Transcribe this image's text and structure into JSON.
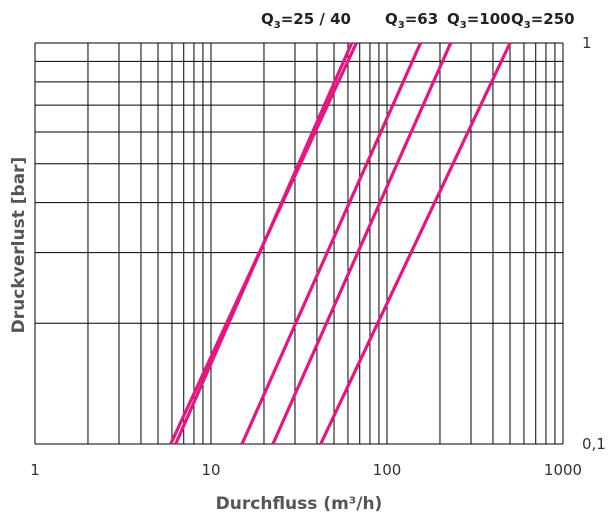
{
  "chart_data": {
    "type": "line",
    "x_scale": "log",
    "y_scale": "log",
    "xlabel": "Durchfluss (m³/h)",
    "ylabel": "Druckverlust [bar]",
    "xlim": [
      1,
      1000
    ],
    "ylim": [
      0.1,
      1
    ],
    "x_ticks": [
      {
        "value": 1,
        "label": "1"
      },
      {
        "value": 10,
        "label": "10"
      },
      {
        "value": 100,
        "label": "100"
      },
      {
        "value": 1000,
        "label": "1000"
      }
    ],
    "y_ticks": [
      {
        "value": 1,
        "label": "1"
      },
      {
        "value": 0.1,
        "label": "0,1"
      }
    ],
    "grid": true,
    "line_color": "#e6157f",
    "series_labels": [
      {
        "main": "Q",
        "sub": "3",
        "rest": "=25 / 40"
      },
      {
        "main": "Q",
        "sub": "3",
        "rest": "=63"
      },
      {
        "main": "Q",
        "sub": "3",
        "rest": "=100"
      },
      {
        "main": "Q",
        "sub": "3",
        "rest": "=250"
      }
    ],
    "series": [
      {
        "points": [
          [
            6.3,
            0.1
          ],
          [
            63,
            1
          ]
        ]
      },
      {
        "points": [
          [
            5.9,
            0.1
          ],
          [
            67,
            1
          ]
        ]
      },
      {
        "points": [
          [
            15,
            0.1
          ],
          [
            155,
            1
          ]
        ]
      },
      {
        "points": [
          [
            22.5,
            0.1
          ],
          [
            230,
            1
          ]
        ]
      },
      {
        "points": [
          [
            42,
            0.1
          ],
          [
            500,
            1
          ]
        ]
      }
    ]
  }
}
